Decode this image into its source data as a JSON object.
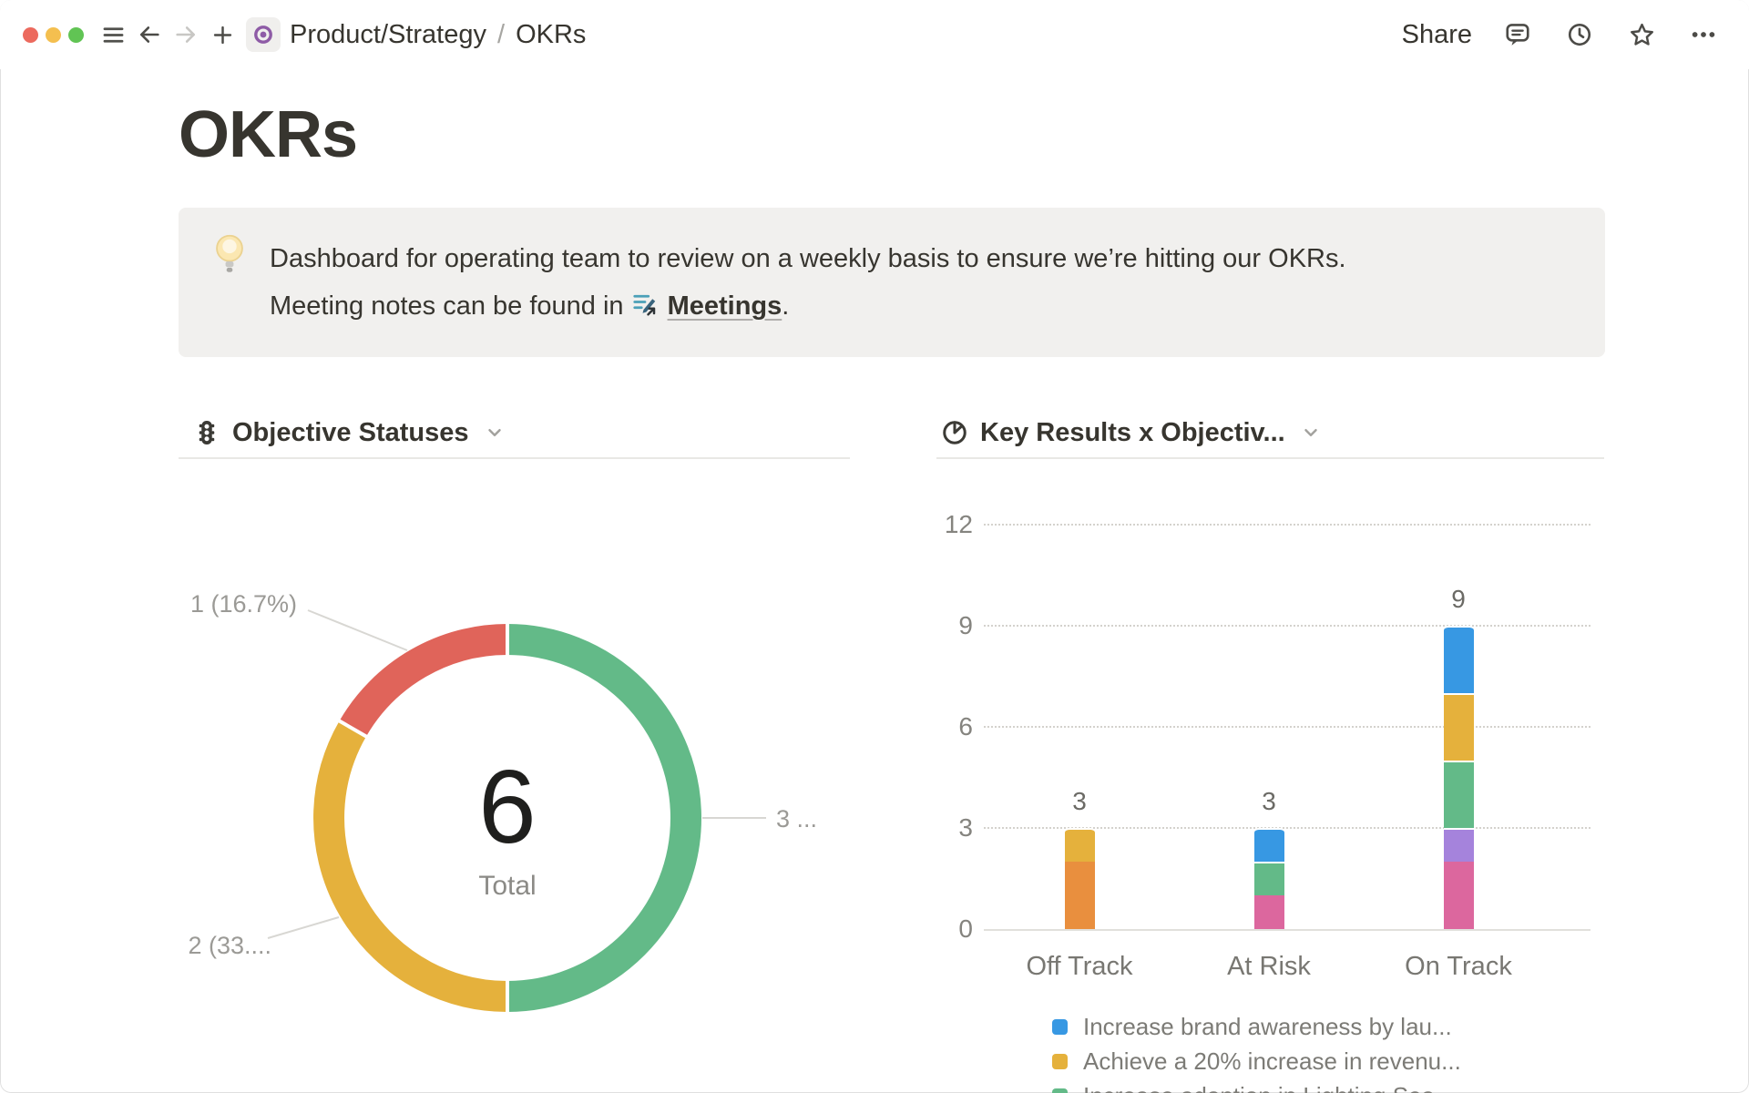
{
  "titlebar": {
    "breadcrumb": {
      "path": "Product/Strategy",
      "separator": "/",
      "current": "OKRs"
    },
    "share_label": "Share"
  },
  "page": {
    "title": "OKRs",
    "callout": {
      "line1": "Dashboard for operating team to review on a weekly basis to ensure we’re hitting our OKRs.",
      "line2_prefix": "Meeting notes can be found in",
      "link_text": "Meetings",
      "line2_suffix": "."
    }
  },
  "charts": {
    "left": {
      "title": "Objective Statuses"
    },
    "right": {
      "title": "Key Results x Objectiv..."
    }
  },
  "chart_data": [
    {
      "type": "donut",
      "title": "Objective Statuses",
      "center_value": "6",
      "center_label": "Total",
      "total": 6,
      "slices": [
        {
          "value": 3,
          "label": "3 ...",
          "color": "#63BA88"
        },
        {
          "value": 2,
          "label": "2 (33....",
          "color": "#E5B13C"
        },
        {
          "value": 1,
          "label": "1 (16.7%)",
          "color": "#E0645A"
        }
      ]
    },
    {
      "type": "stacked-bar",
      "title": "Key Results x Objectiv...",
      "categories": [
        "Off Track",
        "At Risk",
        "On Track"
      ],
      "y_ticks": [
        0,
        3,
        6,
        9,
        12
      ],
      "ylim": [
        0,
        12
      ],
      "grid": "dotted",
      "bar_totals": [
        3,
        3,
        9
      ],
      "bars": [
        {
          "category": "Off Track",
          "segments": [
            {
              "color": "#E98F3E",
              "value": 2
            },
            {
              "color": "#E5B13C",
              "value": 1
            }
          ]
        },
        {
          "category": "At Risk",
          "segments": [
            {
              "color": "#DC679E",
              "value": 1
            },
            {
              "color": "#63BA88",
              "value": 1
            },
            {
              "color": "#3798E3",
              "value": 1
            }
          ]
        },
        {
          "category": "On Track",
          "segments": [
            {
              "color": "#DC679E",
              "value": 2
            },
            {
              "color": "#A583DC",
              "value": 1
            },
            {
              "color": "#63BA88",
              "value": 2
            },
            {
              "color": "#E5B13C",
              "value": 2
            },
            {
              "color": "#3798E3",
              "value": 2
            }
          ]
        }
      ],
      "legend": [
        {
          "color": "#3798E3",
          "label": "Increase brand awareness by lau..."
        },
        {
          "color": "#E5B13C",
          "label": "Achieve a 20% increase in revenu..."
        },
        {
          "color": "#63BA88",
          "label": "Increase adoption in Lighting Sea..."
        }
      ]
    }
  ]
}
